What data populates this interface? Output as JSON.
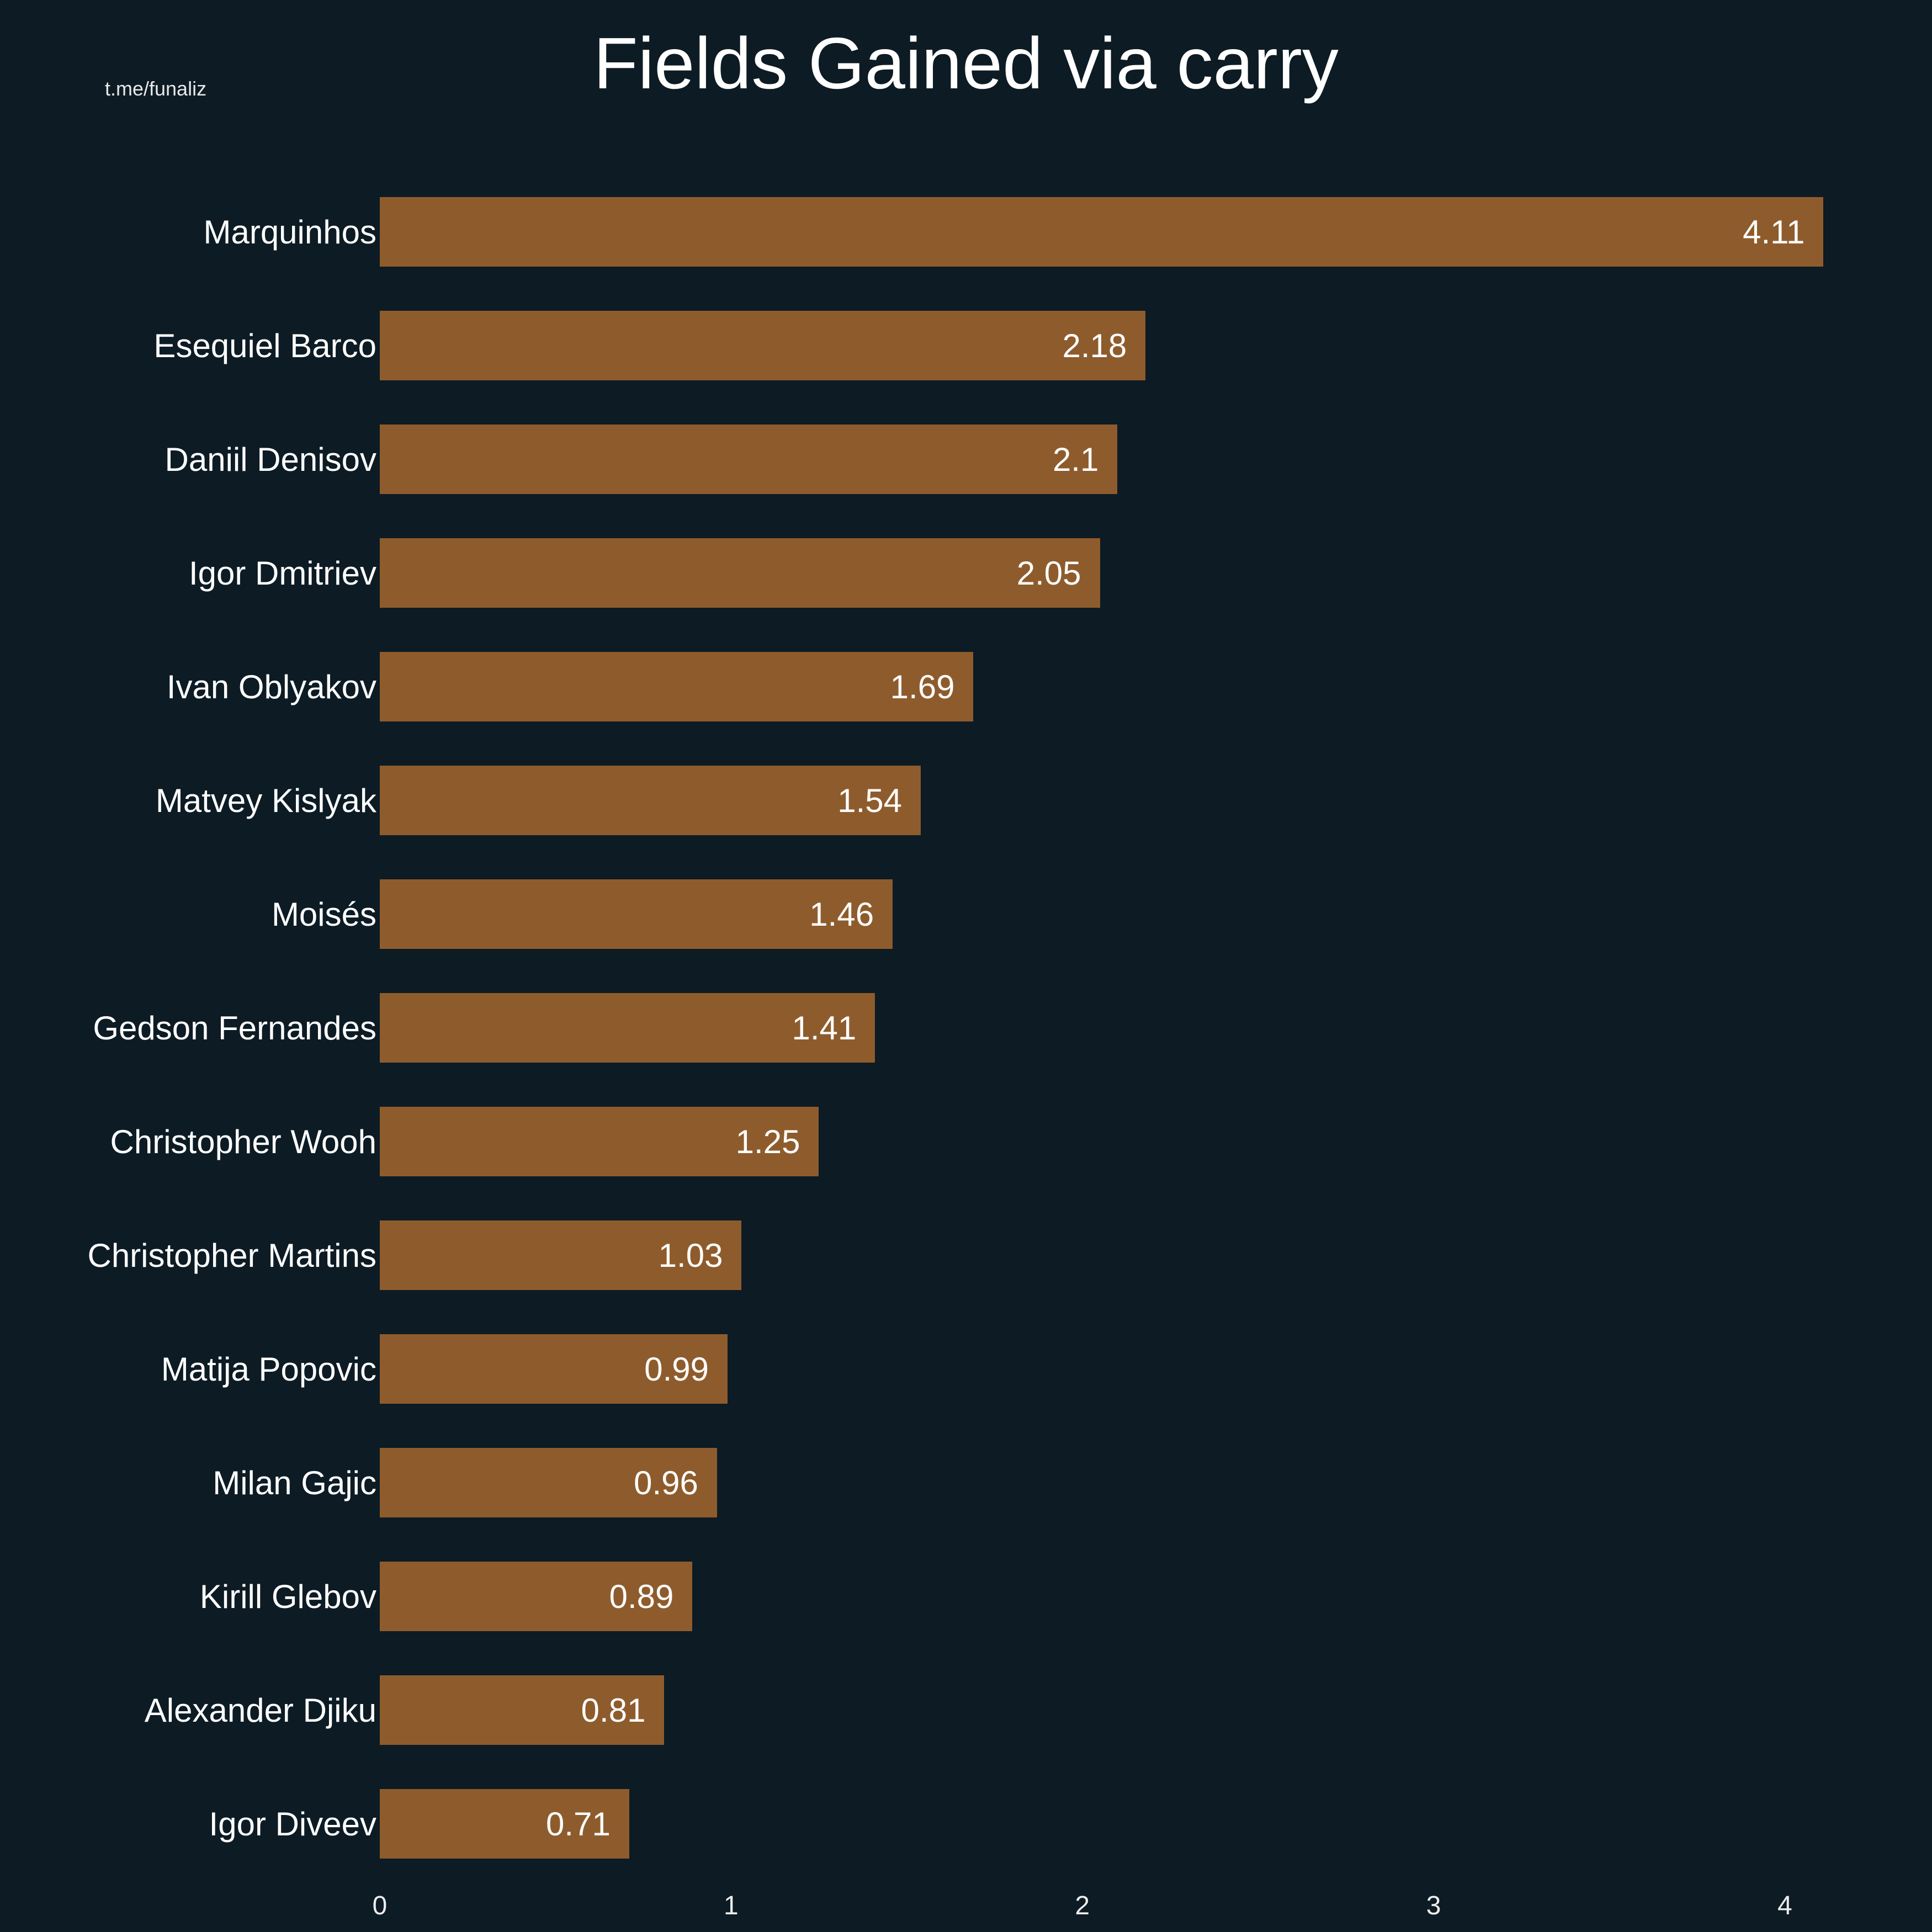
{
  "watermark": "t.me/funaliz",
  "chart_data": {
    "type": "bar",
    "orientation": "horizontal",
    "title": "Fields Gained via carry",
    "categories": [
      "Marquinhos",
      "Esequiel Barco",
      "Daniil Denisov",
      "Igor Dmitriev",
      "Ivan Oblyakov",
      "Matvey Kislyak",
      "Moisés",
      "Gedson Fernandes",
      "Christopher Wooh",
      "Christopher Martins",
      "Matija Popovic",
      "Milan Gajic",
      "Kirill Glebov",
      "Alexander Djiku",
      "Igor Diveev"
    ],
    "values": [
      4.11,
      2.18,
      2.1,
      2.05,
      1.69,
      1.54,
      1.46,
      1.41,
      1.25,
      1.03,
      0.99,
      0.96,
      0.89,
      0.81,
      0.71
    ],
    "value_labels": [
      "4.11",
      "2.18",
      "2.1",
      "2.05",
      "1.69",
      "1.54",
      "1.46",
      "1.41",
      "1.25",
      "1.03",
      "0.99",
      "0.96",
      "0.89",
      "0.81",
      "0.71"
    ],
    "xlabel": "",
    "ylabel": "",
    "xlim": [
      0,
      4.4
    ],
    "xticks": [
      0,
      1,
      2,
      3,
      4
    ],
    "grid": false,
    "legend": false,
    "bar_color": "#8e5c2c",
    "background": "#0d1b24",
    "text_color": "#ffffff"
  }
}
